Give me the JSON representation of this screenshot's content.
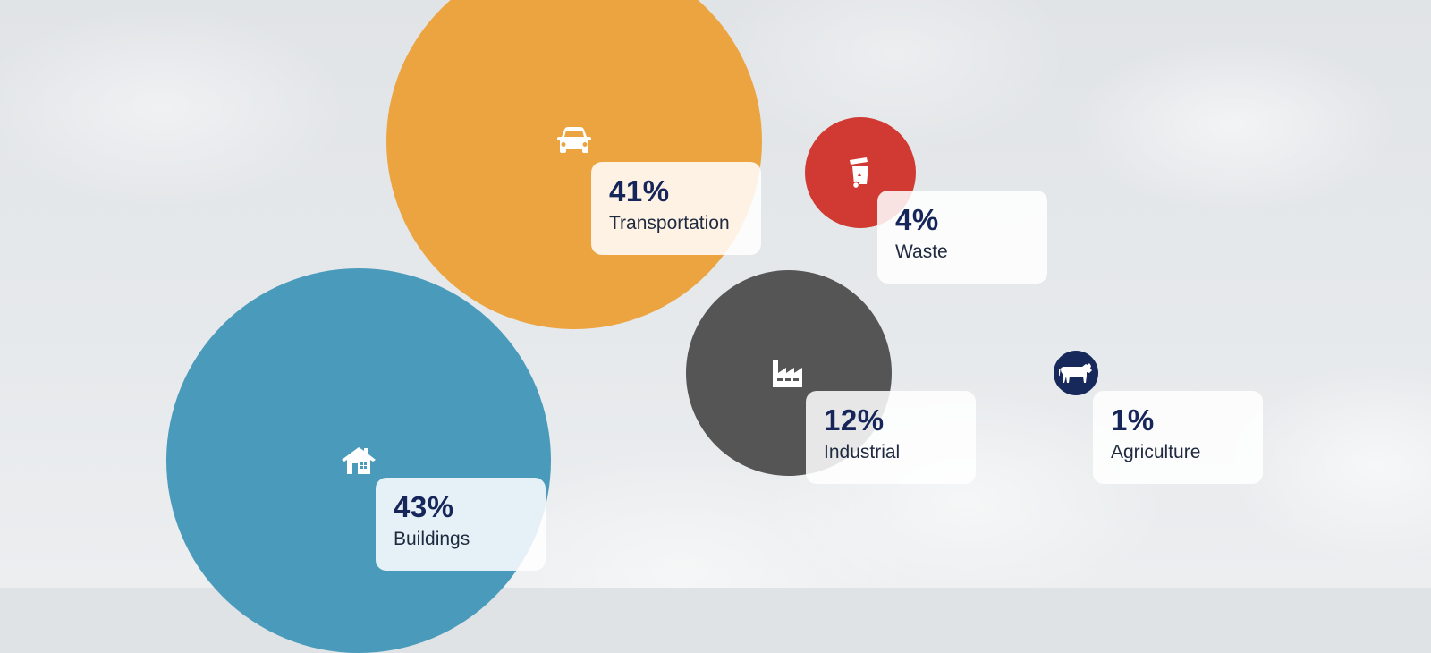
{
  "chart_data": {
    "type": "bubble",
    "categories": [
      "Buildings",
      "Transportation",
      "Industrial",
      "Waste",
      "Agriculture"
    ],
    "values": [
      43,
      41,
      12,
      4,
      1
    ],
    "labels": [
      "43%",
      "41%",
      "12%",
      "4%",
      "1%"
    ],
    "colors": {
      "Buildings": "#4a9bbb",
      "Transportation": "#eca441",
      "Industrial": "#555555",
      "Waste": "#d03a33",
      "Agriculture": "#17285a"
    },
    "icons": {
      "Buildings": "house-icon",
      "Transportation": "car-icon",
      "Industrial": "factory-icon",
      "Waste": "trash-bin-icon",
      "Agriculture": "cow-icon"
    }
  }
}
